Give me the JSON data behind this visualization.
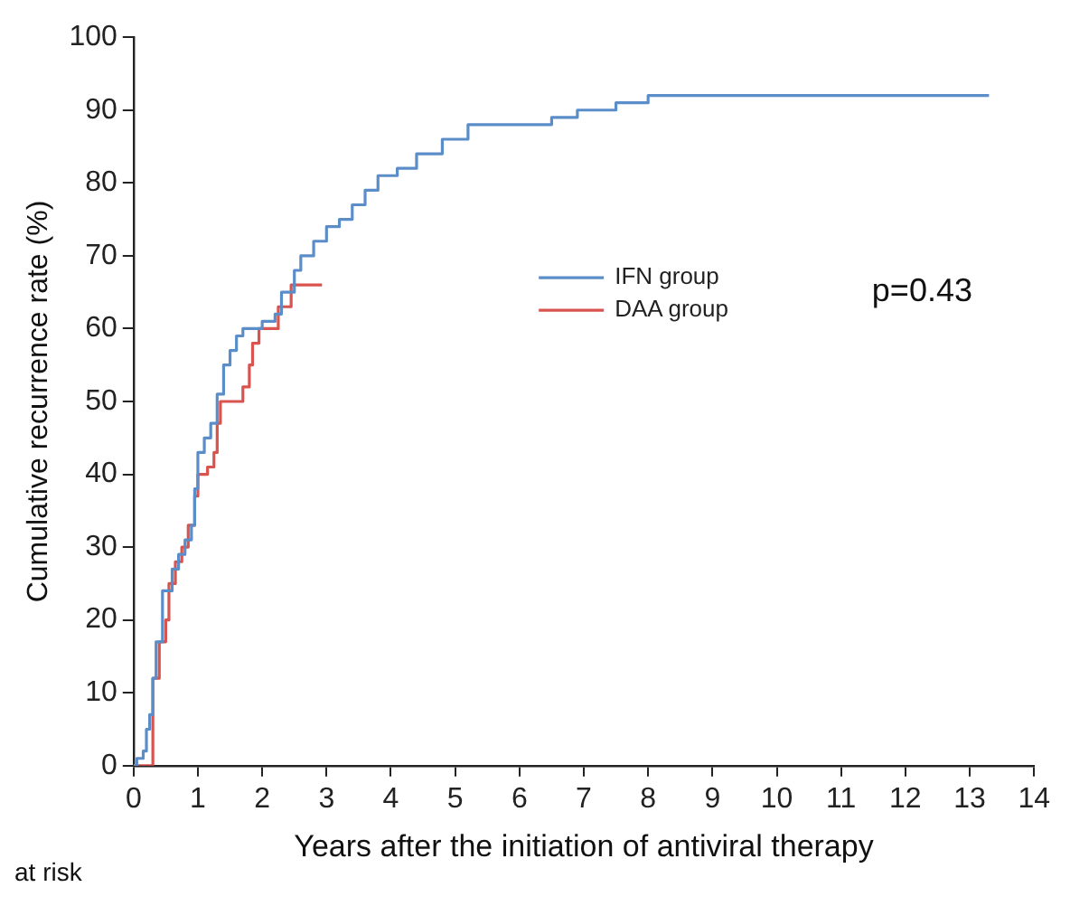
{
  "chart_data": {
    "type": "step",
    "xlabel": "Years after the initiation of antiviral therapy",
    "ylabel": "Cumulative recurrence rate (%)",
    "xlim": [
      0,
      14
    ],
    "xticks": [
      0,
      1,
      2,
      3,
      4,
      5,
      6,
      7,
      8,
      9,
      10,
      11,
      12,
      13,
      14
    ],
    "ylim": [
      0,
      100
    ],
    "yticks": [
      0,
      10,
      20,
      30,
      40,
      50,
      60,
      70,
      80,
      90,
      100
    ],
    "grid": false,
    "legend": "right",
    "annotations": [
      "p=0.43",
      "at risk"
    ],
    "series": [
      {
        "name": "IFN group",
        "color": "#5b8ec9",
        "x": [
          0,
          0.05,
          0.15,
          0.2,
          0.25,
          0.3,
          0.35,
          0.45,
          0.55,
          0.6,
          0.7,
          0.8,
          0.9,
          0.95,
          1.0,
          1.1,
          1.2,
          1.3,
          1.4,
          1.5,
          1.6,
          1.7,
          2.0,
          2.2,
          2.3,
          2.5,
          2.6,
          2.8,
          3.0,
          3.2,
          3.4,
          3.6,
          3.8,
          4.1,
          4.4,
          4.8,
          5.2,
          6.5,
          6.9,
          7.5,
          8.0,
          13.3
        ],
        "values": [
          0,
          1,
          2,
          5,
          7,
          12,
          17,
          24,
          24,
          27,
          29,
          31,
          33,
          38,
          43,
          45,
          47,
          51,
          55,
          57,
          59,
          60,
          61,
          62,
          65,
          68,
          70,
          72,
          74,
          75,
          77,
          79,
          81,
          82,
          84,
          86,
          88,
          89,
          90,
          91,
          92,
          92
        ]
      },
      {
        "name": "DAA group",
        "color": "#d9534f",
        "x": [
          0,
          0.22,
          0.3,
          0.4,
          0.5,
          0.55,
          0.65,
          0.75,
          0.85,
          0.95,
          1.0,
          1.15,
          1.25,
          1.3,
          1.35,
          1.65,
          1.7,
          1.8,
          1.85,
          1.95,
          2.25,
          2.45,
          2.93
        ],
        "values": [
          0,
          0,
          12,
          17,
          20,
          25,
          28,
          30,
          33,
          37,
          40,
          41,
          43,
          47,
          50,
          50,
          52,
          55,
          58,
          60,
          63,
          66,
          66
        ]
      }
    ]
  }
}
